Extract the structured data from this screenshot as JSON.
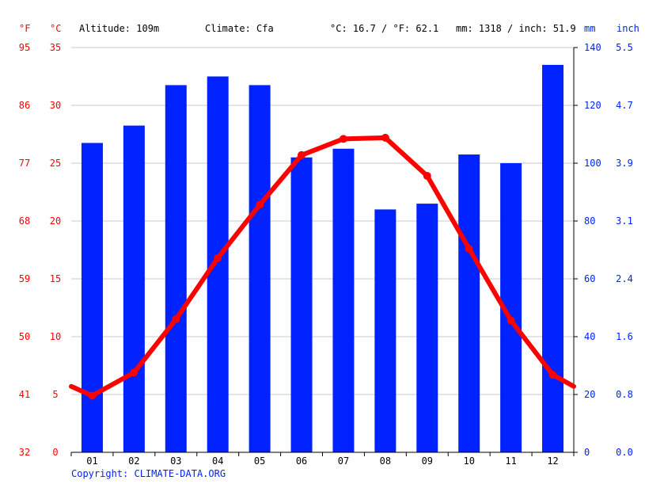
{
  "header": {
    "unit_f": "°F",
    "unit_c": "°C",
    "altitude": "Altitude: 109m",
    "climate": "Climate: Cfa",
    "avg_temp": "°C: 16.7 / °F: 62.1",
    "precip": "mm: 1318 / inch: 51.9",
    "unit_mm": "mm",
    "unit_inch": "inch"
  },
  "copyright": "Copyright: CLIMATE-DATA.ORG",
  "colors": {
    "temperature": "#ff0000",
    "precipitation": "#0022ff",
    "grid": "#c8c8c8"
  },
  "chart_data": {
    "type": "bar+line",
    "categories": [
      "01",
      "02",
      "03",
      "04",
      "05",
      "06",
      "07",
      "08",
      "09",
      "10",
      "11",
      "12"
    ],
    "series": [
      {
        "kind": "bar",
        "axis": "right",
        "values": [
          107,
          113,
          127,
          130,
          127,
          102,
          105,
          84,
          86,
          103,
          100,
          134
        ]
      },
      {
        "kind": "line",
        "axis": "left",
        "values": [
          4.9,
          6.9,
          11.5,
          16.8,
          21.4,
          25.7,
          27.1,
          27.2,
          23.9,
          17.6,
          11.4,
          6.7
        ],
        "edge_values": [
          5.7,
          5.7
        ]
      }
    ],
    "y_left": {
      "ticks": [
        0,
        5,
        10,
        15,
        20,
        25,
        30,
        35
      ],
      "range": [
        0,
        35
      ]
    },
    "y_left_f": {
      "ticks": [
        "32",
        "41",
        "50",
        "59",
        "68",
        "77",
        "86",
        "95"
      ]
    },
    "y_right": {
      "ticks": [
        0,
        20,
        40,
        60,
        80,
        100,
        120,
        140
      ],
      "range": [
        0,
        140
      ]
    },
    "y_right_inch": {
      "ticks": [
        "0.0",
        "0.8",
        "1.6",
        "2.4",
        "3.1",
        "3.9",
        "4.7",
        "5.5"
      ]
    },
    "grid": true
  }
}
